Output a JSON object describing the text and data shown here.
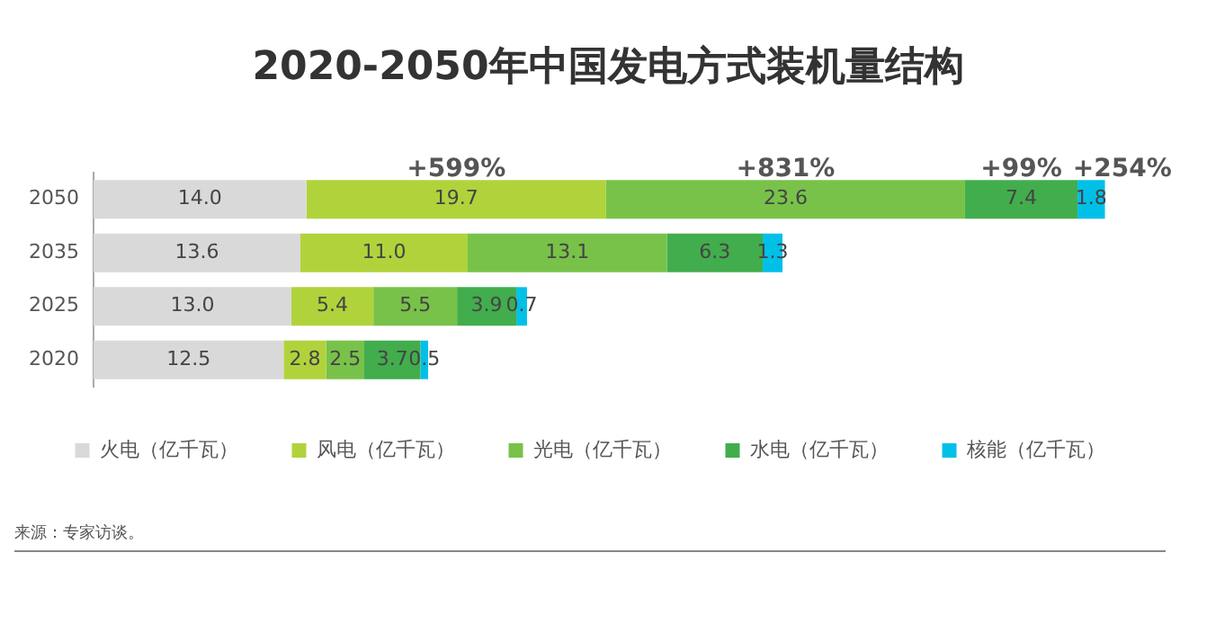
{
  "chart_data": {
    "type": "bar",
    "orientation": "horizontal",
    "stacked": true,
    "title": "2020-2050年中国发电方式装机量结构",
    "categories": [
      "2050",
      "2035",
      "2025",
      "2020"
    ],
    "series": [
      {
        "name": "火电（亿千瓦）",
        "color": "#d9d9d9",
        "values": [
          14.0,
          13.6,
          13.0,
          12.5
        ],
        "value_labels": [
          "14.0",
          "13.6",
          "13.0",
          "12.5"
        ]
      },
      {
        "name": "风电（亿千瓦）",
        "color": "#b0d33c",
        "values": [
          19.7,
          11.0,
          5.4,
          2.8
        ],
        "value_labels": [
          "19.7",
          "11.0",
          "5.4",
          "2.8"
        ]
      },
      {
        "name": "光电（亿千瓦）",
        "color": "#78c24a",
        "values": [
          23.6,
          13.1,
          5.5,
          2.5
        ],
        "value_labels": [
          "23.6",
          "13.1",
          "5.5",
          "2.5"
        ]
      },
      {
        "name": "水电（亿千瓦）",
        "color": "#42ad4d",
        "values": [
          7.4,
          6.3,
          3.9,
          3.7
        ],
        "value_labels": [
          "7.4",
          "6.3",
          "3.9",
          "3.7"
        ]
      },
      {
        "name": "核能（亿千瓦）",
        "color": "#00c0e8",
        "values": [
          1.8,
          1.3,
          0.7,
          0.5
        ],
        "value_labels": [
          "1.8",
          "1.3",
          "0.7",
          "0.5"
        ]
      }
    ],
    "legend": "bottom",
    "grid": false,
    "tick_labels": "y",
    "annotations": [
      {
        "text": "+599%",
        "x": 23.85,
        "y": "2050"
      },
      {
        "text": "+831%",
        "x": 45.5,
        "y": "2050"
      },
      {
        "text": "+99%",
        "x": 61,
        "y": "2050"
      },
      {
        "text": "+254%",
        "x": 65.6,
        "y": "2050"
      },
      "来源：专家访谈。"
    ]
  }
}
